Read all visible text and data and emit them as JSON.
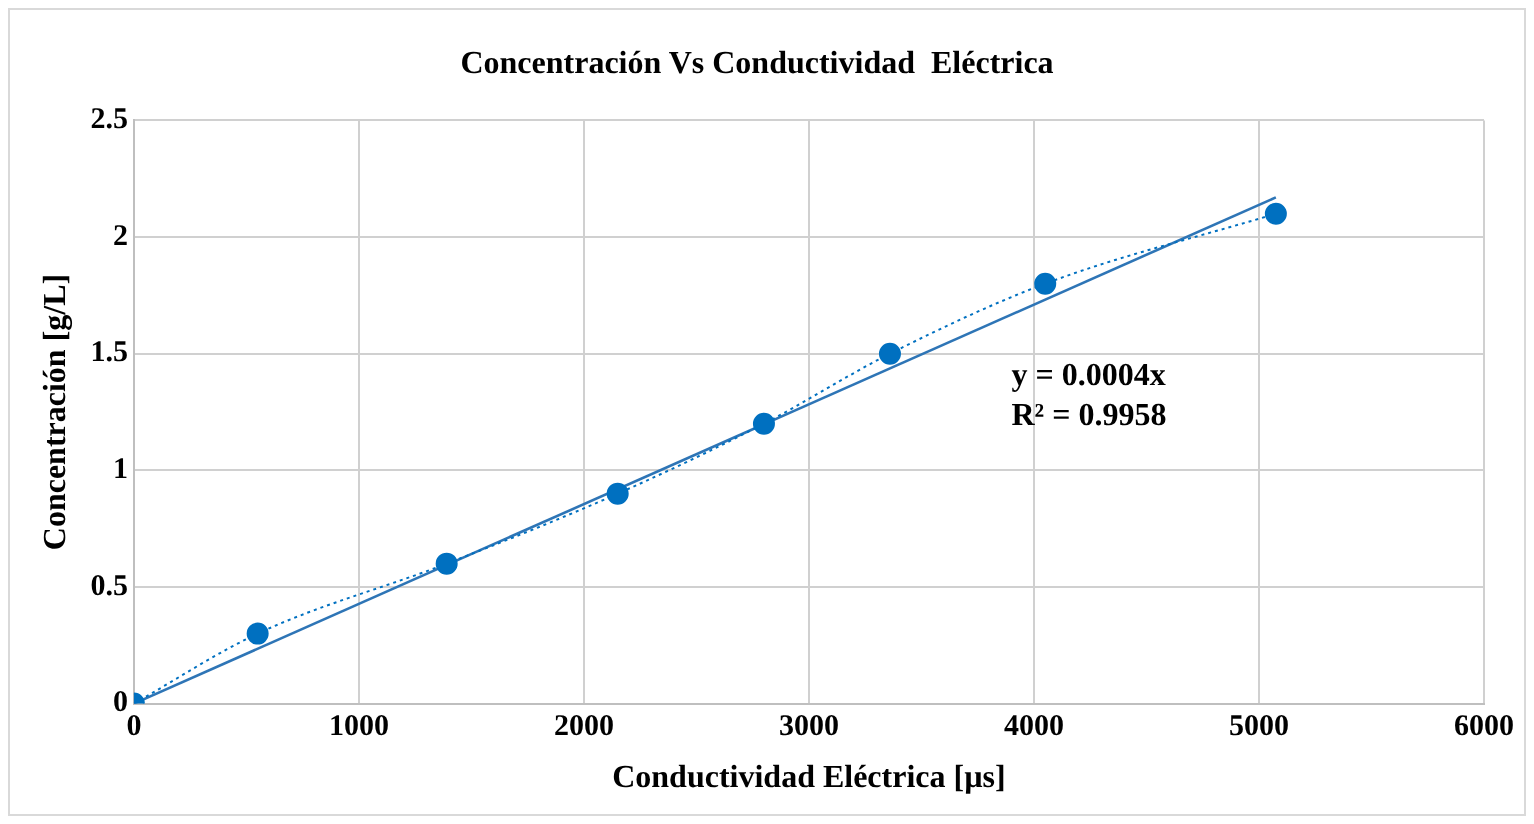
{
  "chart_data": {
    "type": "line",
    "title": "Concentración Vs Conductividad  Eléctrica",
    "xlabel": "Conductividad Eléctrica [µs]",
    "ylabel": "Concentración [g/L]",
    "xlim": [
      0,
      6000
    ],
    "xticks": [
      0,
      1000,
      2000,
      3000,
      4000,
      5000,
      6000
    ],
    "ylim": [
      0,
      2.5
    ],
    "yticks": [
      0,
      0.5,
      1,
      1.5,
      2,
      2.5
    ],
    "grid": true,
    "legend": false,
    "series": [
      {
        "color": "#0070c0",
        "x": [
          0,
          550,
          1390,
          2150,
          2800,
          3360,
          4050,
          5075
        ],
        "values": [
          0,
          0.3,
          0.6,
          0.9,
          1.2,
          1.5,
          1.8,
          2.1
        ],
        "marker": "circle",
        "line_style": "dotted"
      },
      {
        "color": "#2e75b6",
        "x": [
          0,
          5075
        ],
        "values": [
          0,
          2.17
        ],
        "marker": "none",
        "line_style": "solid"
      }
    ],
    "annotations": [
      "y = 0.0004x",
      "R² = 0.9958"
    ]
  }
}
